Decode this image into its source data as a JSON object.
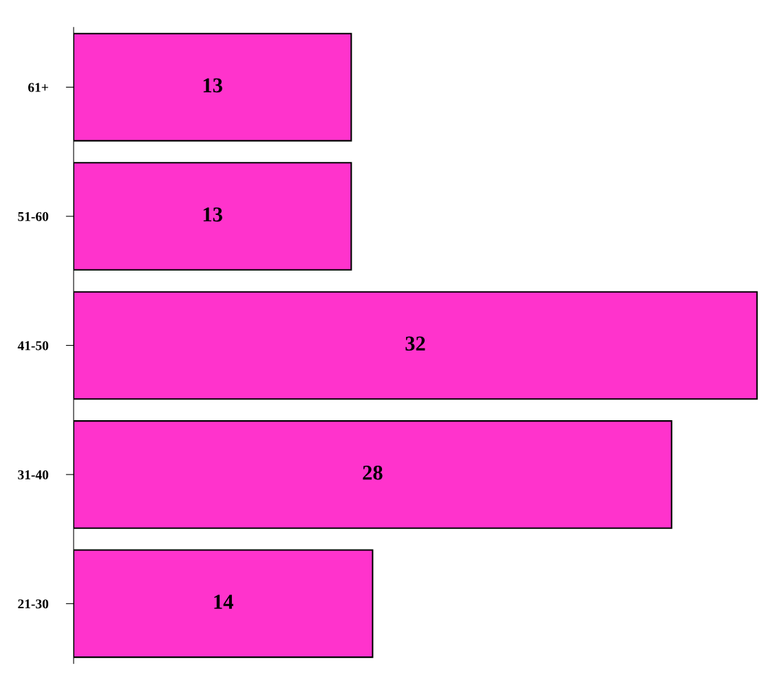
{
  "chart_data": {
    "type": "bar",
    "orientation": "horizontal",
    "categories": [
      "61+",
      "51-60",
      "41-50",
      "31-40",
      "21-30"
    ],
    "values": [
      13,
      13,
      32,
      28,
      14
    ],
    "color": "#ff33cc",
    "data_labels": true
  }
}
